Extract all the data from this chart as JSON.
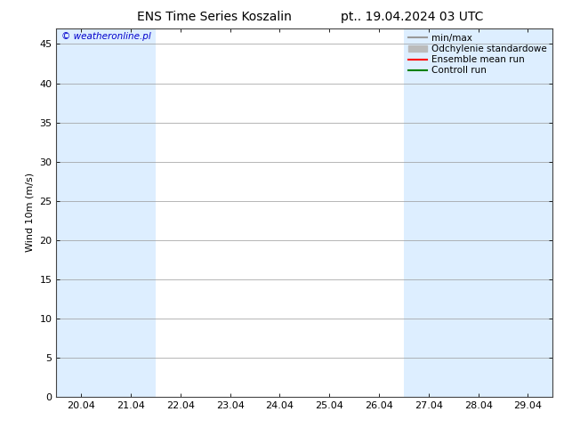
{
  "title_left": "ENS Time Series Koszalin",
  "title_right": "pt.. 19.04.2024 03 UTC",
  "ylabel": "Wind 10m (m/s)",
  "watermark": "© weatheronline.pl",
  "x_tick_labels": [
    "20.04",
    "21.04",
    "22.04",
    "23.04",
    "24.04",
    "25.04",
    "26.04",
    "27.04",
    "28.04",
    "29.04"
  ],
  "x_tick_positions": [
    0,
    1,
    2,
    3,
    4,
    5,
    6,
    7,
    8,
    9
  ],
  "xlim": [
    -0.5,
    9.5
  ],
  "ylim": [
    0,
    47
  ],
  "yticks": [
    0,
    5,
    10,
    15,
    20,
    25,
    30,
    35,
    40,
    45
  ],
  "background_color": "#ffffff",
  "plot_bg_color": "#ffffff",
  "shaded_bands_x": [
    [
      -0.5,
      0.5
    ],
    [
      0.5,
      1.5
    ],
    [
      6.5,
      7.5
    ],
    [
      7.5,
      8.5
    ],
    [
      8.5,
      9.5
    ]
  ],
  "shade_color": "#ddeeff",
  "legend_entries": [
    {
      "label": "min/max",
      "color": "#999999",
      "lw": 1.5
    },
    {
      "label": "Odchylenie standardowe",
      "color": "#bbbbbb",
      "lw": 6
    },
    {
      "label": "Ensemble mean run",
      "color": "#ff0000",
      "lw": 1.5
    },
    {
      "label": "Controll run",
      "color": "#008000",
      "lw": 1.5
    }
  ],
  "title_fontsize": 10,
  "axis_fontsize": 8,
  "tick_fontsize": 8,
  "legend_fontsize": 7.5
}
